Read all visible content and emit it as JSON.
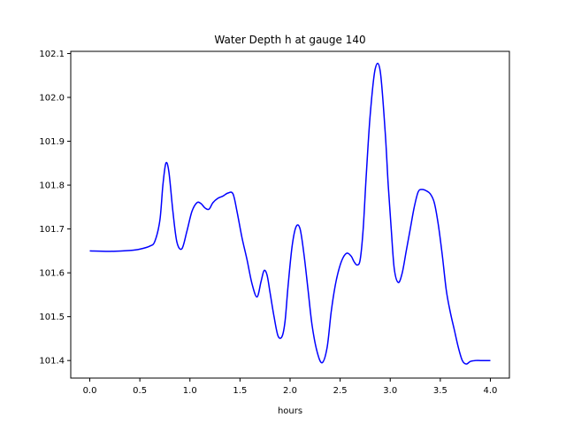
{
  "chart_data": {
    "type": "line",
    "title": "Water Depth h at gauge 140",
    "xlabel": "hours",
    "ylabel": "",
    "xlim": [
      -0.19,
      4.19
    ],
    "ylim": [
      101.36,
      102.105
    ],
    "xticks": [
      0.0,
      0.5,
      1.0,
      1.5,
      2.0,
      2.5,
      3.0,
      3.5,
      4.0
    ],
    "xtick_labels": [
      "0.0",
      "0.5",
      "1.0",
      "1.5",
      "2.0",
      "2.5",
      "3.0",
      "3.5",
      "4.0"
    ],
    "yticks": [
      101.4,
      101.5,
      101.6,
      101.7,
      101.8,
      101.9,
      102.0,
      102.1
    ],
    "ytick_labels": [
      "101.4",
      "101.5",
      "101.6",
      "101.7",
      "101.8",
      "101.9",
      "102.0",
      "102.1"
    ],
    "grid": false,
    "series": [
      {
        "name": "",
        "color": "#0000ff",
        "x": [
          0.0,
          0.2,
          0.4,
          0.5,
          0.6,
          0.65,
          0.7,
          0.73,
          0.76,
          0.79,
          0.83,
          0.87,
          0.92,
          0.97,
          1.02,
          1.07,
          1.11,
          1.15,
          1.19,
          1.23,
          1.28,
          1.33,
          1.38,
          1.43,
          1.47,
          1.52,
          1.57,
          1.62,
          1.67,
          1.71,
          1.74,
          1.77,
          1.8,
          1.84,
          1.88,
          1.92,
          1.95,
          1.98,
          2.02,
          2.06,
          2.1,
          2.14,
          2.18,
          2.22,
          2.27,
          2.32,
          2.37,
          2.41,
          2.45,
          2.49,
          2.53,
          2.57,
          2.61,
          2.64,
          2.67,
          2.7,
          2.73,
          2.76,
          2.8,
          2.85,
          2.9,
          2.95,
          2.98,
          3.01,
          3.04,
          3.08,
          3.12,
          3.16,
          3.2,
          3.24,
          3.28,
          3.32,
          3.36,
          3.4,
          3.44,
          3.48,
          3.52,
          3.56,
          3.6,
          3.64,
          3.68,
          3.72,
          3.76,
          3.8,
          3.85,
          3.9,
          3.94,
          3.97,
          4.0
        ],
        "y": [
          101.65,
          101.649,
          101.651,
          101.654,
          101.661,
          101.672,
          101.72,
          101.8,
          101.85,
          101.83,
          101.74,
          101.67,
          101.655,
          101.695,
          101.74,
          101.76,
          101.758,
          101.748,
          101.745,
          101.76,
          101.77,
          101.775,
          101.782,
          101.78,
          101.74,
          101.68,
          101.63,
          101.575,
          101.545,
          101.58,
          101.605,
          101.595,
          101.555,
          101.5,
          101.456,
          101.455,
          101.49,
          101.57,
          101.66,
          101.705,
          101.7,
          101.64,
          101.56,
          101.48,
          101.42,
          101.395,
          101.43,
          101.51,
          101.57,
          101.61,
          101.635,
          101.645,
          101.638,
          101.625,
          101.618,
          101.63,
          101.7,
          101.82,
          101.96,
          102.065,
          102.06,
          101.92,
          101.8,
          101.7,
          101.61,
          101.578,
          101.6,
          101.65,
          101.7,
          101.75,
          101.785,
          101.79,
          101.787,
          101.78,
          101.76,
          101.71,
          101.64,
          101.56,
          101.51,
          101.47,
          101.43,
          101.4,
          101.392,
          101.398,
          101.4,
          101.4,
          101.4,
          101.4,
          101.4
        ]
      }
    ]
  }
}
